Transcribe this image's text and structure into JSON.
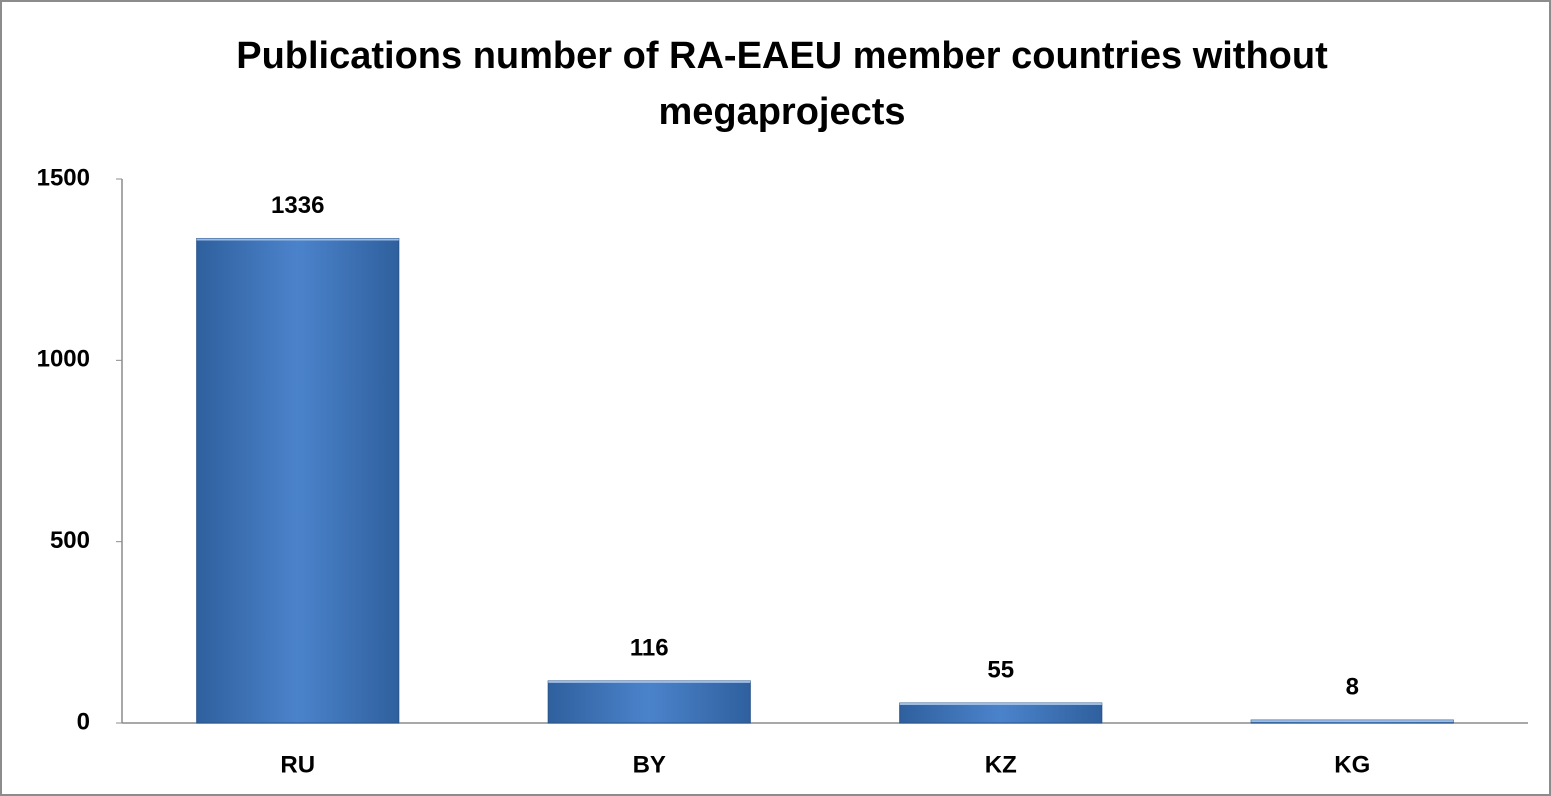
{
  "chart_data": {
    "type": "bar",
    "title": "Publications number of RA-EAEU member countries without megaprojects",
    "categories": [
      "RU",
      "BY",
      "KZ",
      "KG"
    ],
    "values": [
      1336,
      116,
      55,
      8
    ],
    "color": "#3b78c6",
    "ylim": [
      0,
      1500
    ],
    "yticks": [
      0,
      500,
      1000,
      1500
    ],
    "grid": false
  }
}
